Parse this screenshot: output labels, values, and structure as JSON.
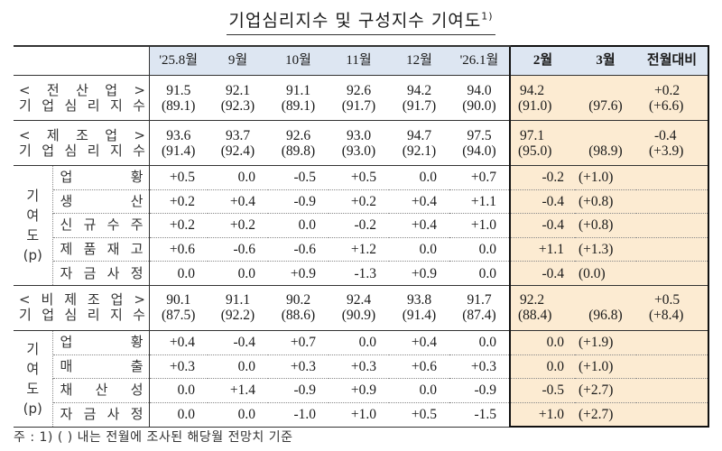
{
  "title": "기업심리지수 및 구성지수 기여도",
  "title_sup": "1)",
  "columns": [
    "'25.8월",
    "9월",
    "10월",
    "11월",
    "12월",
    "'26.1월",
    "2월",
    "3월",
    "전월대비"
  ],
  "highlight_color": "#fcebd2",
  "header_color": "#dde6f2",
  "sections": [
    {
      "label_line1": [
        "<",
        "전",
        "산",
        "업",
        ">"
      ],
      "label_line2": [
        "기",
        "업",
        "심",
        "리",
        "지",
        "수"
      ],
      "values": [
        "91.5",
        "92.1",
        "91.1",
        "92.6",
        "94.2",
        "94.0",
        "94.2",
        "",
        "+0.2"
      ],
      "forecasts": [
        "(89.1)",
        "(92.3)",
        "(89.1)",
        "(91.7)",
        "(91.7)",
        "(90.0)",
        "(91.0)",
        "(97.6)",
        "(+6.6)"
      ]
    },
    {
      "label_line1": [
        "<",
        "제",
        "조",
        "업",
        ">"
      ],
      "label_line2": [
        "기",
        "업",
        "심",
        "리",
        "지",
        "수"
      ],
      "values": [
        "93.6",
        "93.7",
        "92.6",
        "93.0",
        "94.7",
        "97.5",
        "97.1",
        "",
        "-0.4"
      ],
      "forecasts": [
        "(91.4)",
        "(92.4)",
        "(89.8)",
        "(93.0)",
        "(92.1)",
        "(94.0)",
        "(95.0)",
        "(98.9)",
        "(+3.9)"
      ],
      "group_label": [
        "기",
        "여",
        "도",
        "(p)"
      ],
      "contributions": [
        {
          "label": [
            "업",
            "황"
          ],
          "values": [
            "+0.5",
            "0.0",
            "-0.5",
            "+0.5",
            "0.0",
            "+0.7",
            "-0.2",
            "(+1.0)",
            ""
          ]
        },
        {
          "label": [
            "생",
            "산"
          ],
          "values": [
            "+0.2",
            "+0.4",
            "-0.9",
            "+0.2",
            "+0.4",
            "+1.1",
            "-0.4",
            "(+0.8)",
            ""
          ]
        },
        {
          "label": [
            "신",
            "규",
            "수",
            "주"
          ],
          "values": [
            "+0.2",
            "+0.2",
            "0.0",
            "-0.2",
            "+0.4",
            "+1.0",
            "-0.4",
            "(+0.8)",
            ""
          ]
        },
        {
          "label": [
            "제",
            "품",
            "재",
            "고"
          ],
          "values": [
            "+0.6",
            "-0.6",
            "-0.6",
            "+1.2",
            "0.0",
            "0.0",
            "+1.1",
            "(+1.3)",
            ""
          ]
        },
        {
          "label": [
            "자",
            "금",
            "사",
            "정"
          ],
          "values": [
            "0.0",
            "0.0",
            "+0.9",
            "-1.3",
            "+0.9",
            "0.0",
            "-0.4",
            "(0.0)",
            ""
          ]
        }
      ]
    },
    {
      "label_line1": [
        "<",
        "비",
        "제",
        "조",
        "업",
        ">"
      ],
      "label_line2": [
        "기",
        "업",
        "심",
        "리",
        "지",
        "수"
      ],
      "values": [
        "90.1",
        "91.1",
        "90.2",
        "92.4",
        "93.8",
        "91.7",
        "92.2",
        "",
        "+0.5"
      ],
      "forecasts": [
        "(87.5)",
        "(92.2)",
        "(88.6)",
        "(90.9)",
        "(91.4)",
        "(87.4)",
        "(88.4)",
        "(96.8)",
        "(+8.4)"
      ],
      "group_label": [
        "기",
        "여",
        "도",
        "(p)"
      ],
      "contributions": [
        {
          "label": [
            "업",
            "황"
          ],
          "values": [
            "+0.4",
            "-0.4",
            "+0.7",
            "0.0",
            "+0.4",
            "0.0",
            "0.0",
            "(+1.9)",
            ""
          ]
        },
        {
          "label": [
            "매",
            "출"
          ],
          "values": [
            "+0.3",
            "0.0",
            "+0.3",
            "+0.3",
            "+0.6",
            "+0.3",
            "0.0",
            "(+1.0)",
            ""
          ]
        },
        {
          "label": [
            "채",
            "산",
            "성"
          ],
          "values": [
            "0.0",
            "+1.4",
            "-0.9",
            "+0.9",
            "0.0",
            "-0.9",
            "-0.5",
            "(+2.7)",
            ""
          ]
        },
        {
          "label": [
            "자",
            "금",
            "사",
            "정"
          ],
          "values": [
            "0.0",
            "0.0",
            "-1.0",
            "+1.0",
            "+0.5",
            "-1.5",
            "+1.0",
            "(+2.7)",
            ""
          ]
        }
      ]
    }
  ],
  "footnote": "주 : 1) (    ) 내는 전월에 조사된 해당월 전망치 기준"
}
